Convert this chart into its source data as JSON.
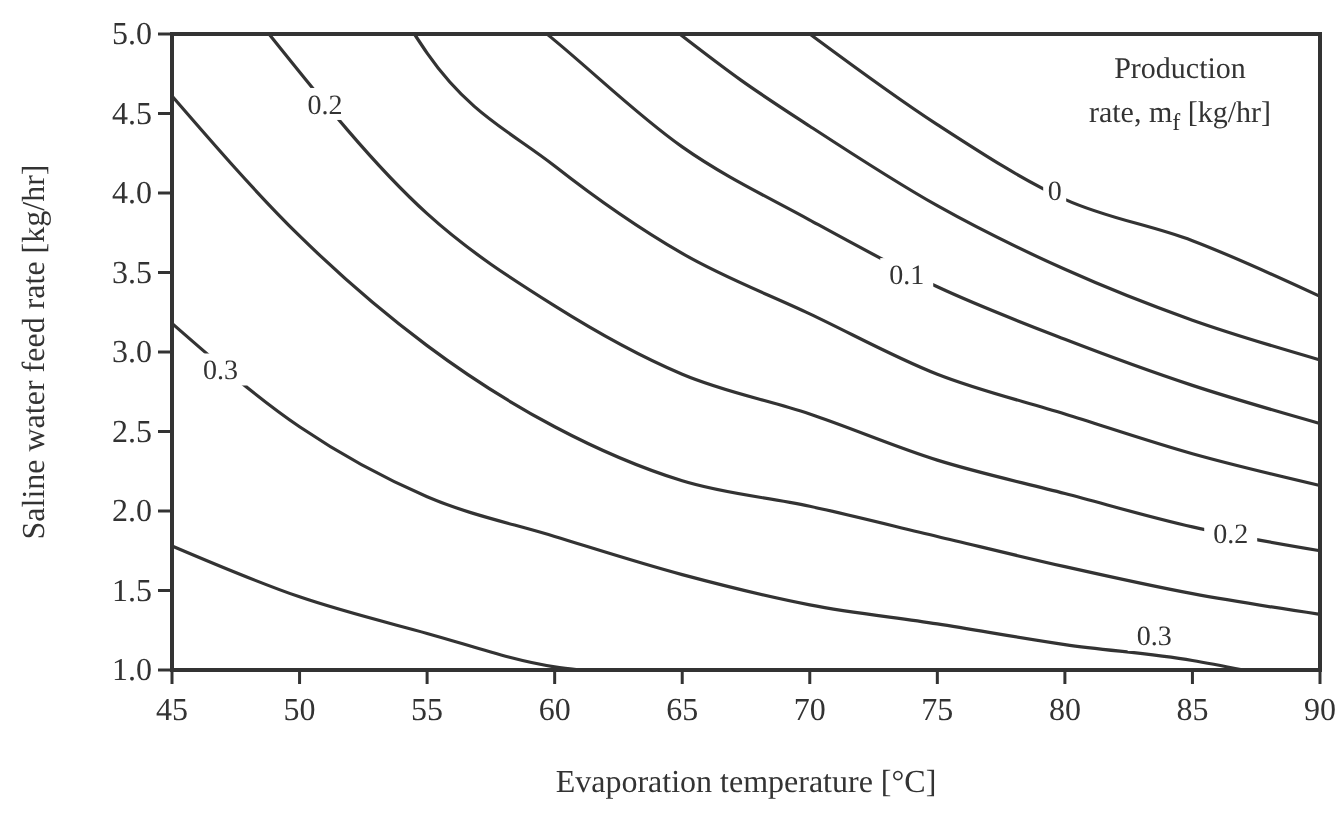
{
  "chart_data": {
    "type": "line",
    "xlabel": "Evaporation temperature [°C]",
    "ylabel": "Saline water feed rate [kg/hr]",
    "xlim": [
      45,
      90
    ],
    "xticks": [
      45,
      50,
      55,
      60,
      65,
      70,
      75,
      80,
      85,
      90
    ],
    "ylim": [
      1.0,
      5.0
    ],
    "yticks": [
      {
        "value": 1.0,
        "label": "1.0"
      },
      {
        "value": 1.5,
        "label": "1.5"
      },
      {
        "value": 2.0,
        "label": "2.0"
      },
      {
        "value": 2.5,
        "label": "2.5"
      },
      {
        "value": 3.0,
        "label": "3.0"
      },
      {
        "value": 3.5,
        "label": "3.5"
      },
      {
        "value": 4.0,
        "label": "4.0"
      },
      {
        "value": 4.5,
        "label": "4.5"
      },
      {
        "value": 5.0,
        "label": "5.0"
      }
    ],
    "grid": false,
    "marker": "none",
    "line_style": "solid",
    "series": [
      {
        "color": "#333333",
        "x": [
          70,
          75,
          80,
          85,
          90
        ],
        "values": [
          5.0,
          4.43,
          3.96,
          3.7,
          3.35
        ]
      },
      {
        "color": "#333333",
        "x": [
          64.9,
          67.3,
          70,
          75,
          80,
          85,
          90
        ],
        "values": [
          5.0,
          4.71,
          4.42,
          3.92,
          3.52,
          3.2,
          2.95
        ]
      },
      {
        "color": "#333333",
        "x": [
          59.7,
          60,
          65,
          70,
          75,
          80,
          85,
          90
        ],
        "values": [
          5.0,
          4.96,
          4.29,
          3.83,
          3.41,
          3.08,
          2.79,
          2.55
        ]
      },
      {
        "color": "#333333",
        "x": [
          54.5,
          55,
          60,
          65,
          70,
          75,
          80,
          85,
          90
        ],
        "values": [
          5.0,
          4.88,
          4.17,
          3.62,
          3.24,
          2.86,
          2.61,
          2.36,
          2.16
        ]
      },
      {
        "color": "#333333",
        "x": [
          48.8,
          55,
          60,
          65,
          70,
          75,
          80,
          85,
          90
        ],
        "values": [
          5.0,
          3.87,
          3.29,
          2.86,
          2.61,
          2.32,
          2.11,
          1.9,
          1.75
        ]
      },
      {
        "color": "#333333",
        "x": [
          45,
          50,
          55,
          60,
          65,
          70,
          75,
          80,
          85,
          90
        ],
        "values": [
          4.61,
          3.73,
          3.04,
          2.53,
          2.19,
          2.03,
          1.84,
          1.65,
          1.48,
          1.35
        ]
      },
      {
        "color": "#333333",
        "x": [
          45,
          50,
          55,
          60,
          65,
          70,
          75,
          80,
          85,
          87
        ],
        "values": [
          3.18,
          2.53,
          2.09,
          1.84,
          1.6,
          1.41,
          1.29,
          1.16,
          1.06,
          1.0
        ]
      },
      {
        "color": "#333333",
        "x": [
          45,
          50,
          55,
          60,
          61
        ],
        "values": [
          1.78,
          1.46,
          1.23,
          1.02,
          1.0
        ]
      }
    ],
    "annotations": [
      "Production rate, m$_{f}$ [kg/hr]",
      {
        "text": "0",
        "x": 79.6,
        "y": 4.02
      },
      {
        "text": "0.1",
        "x": 73.8,
        "y": 3.49
      },
      {
        "text": "0.2",
        "x": 51,
        "y": 4.56
      },
      {
        "text": "0.2",
        "x": 86.5,
        "y": 1.86
      },
      {
        "text": "0.3",
        "x": 46.9,
        "y": 2.89
      },
      {
        "text": "0.3",
        "x": 83.5,
        "y": 1.22
      }
    ]
  }
}
